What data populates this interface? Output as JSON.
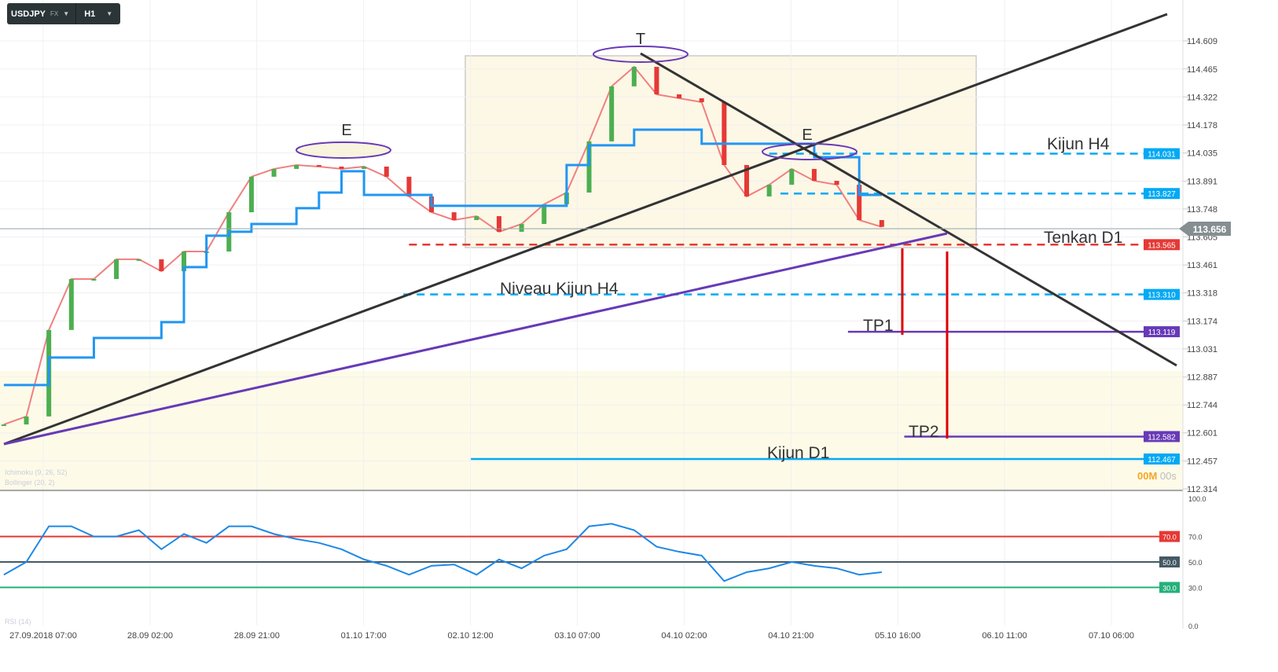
{
  "toolbar": {
    "symbol": "USDJPY",
    "market": "FX",
    "timeframe": "H1"
  },
  "indicators": {
    "ichimoku": "Ichimoku (9, 26, 52)",
    "bollinger": "Bollinger (20, 2)",
    "rsi": "RSI (14)"
  },
  "timer": {
    "minutes": "00M",
    "seconds": "00s"
  },
  "colors": {
    "tenkan": "#f08080",
    "kijun": "#2196f3",
    "chikou": "#37474f",
    "senkou_b": "#f5a64a",
    "rsi": "#1e88e5",
    "rsi_70": "#e53935",
    "rsi_50": "#455a64",
    "rsi_30": "#26b07a",
    "zone": "#fdfbe8"
  },
  "chart_data": {
    "type": "line",
    "symbol": "USDJPY",
    "timeframe": "H1",
    "x_ticks": [
      "27.09.2018  07:00",
      "28.09  02:00",
      "28.09  21:00",
      "01.10  17:00",
      "02.10  12:00",
      "03.10  07:00",
      "04.10  02:00",
      "04.10  21:00",
      "05.10  16:00",
      "06.10  11:00",
      "07.10  06:00"
    ],
    "y_ticks": [
      "114.609",
      "114.465",
      "114.322",
      "114.178",
      "114.035",
      "113.891",
      "113.748",
      "113.605",
      "113.461",
      "113.318",
      "113.174",
      "113.031",
      "112.887",
      "112.744",
      "112.601",
      "112.457",
      "112.314"
    ],
    "ylim": [
      112.314,
      114.609
    ],
    "grid": true,
    "x": [
      "27.09 00:00",
      "27.09 04:00",
      "27.09 08:00",
      "27.09 12:00",
      "27.09 16:00",
      "27.09 20:00",
      "28.09 00:00",
      "28.09 04:00",
      "28.09 08:00",
      "28.09 12:00",
      "28.09 16:00",
      "28.09 20:00",
      "01.10 01:00",
      "01.10 05:00",
      "01.10 09:00",
      "01.10 13:00",
      "01.10 17:00",
      "01.10 21:00",
      "02.10 01:00",
      "02.10 05:00",
      "02.10 09:00",
      "02.10 13:00",
      "02.10 17:00",
      "02.10 21:00",
      "03.10 01:00",
      "03.10 05:00",
      "03.10 09:00",
      "03.10 13:00",
      "03.10 17:00",
      "03.10 21:00",
      "04.10 01:00",
      "04.10 05:00",
      "04.10 09:00",
      "04.10 13:00",
      "04.10 17:00",
      "04.10 21:00",
      "05.10 01:00",
      "05.10 05:00",
      "05.10 09:00",
      "05.10 13:00"
    ],
    "series": [
      {
        "name": "",
        "role": "price",
        "values": [
          112.644,
          112.685,
          113.128,
          113.389,
          113.389,
          113.49,
          113.49,
          113.429,
          113.53,
          113.53,
          113.731,
          113.913,
          113.953,
          113.973,
          113.965,
          113.953,
          113.965,
          113.913,
          113.812,
          113.731,
          113.691,
          113.711,
          113.631,
          113.671,
          113.772,
          113.832,
          114.094,
          114.376,
          114.476,
          114.335,
          114.315,
          114.295,
          113.973,
          113.812,
          113.872,
          113.953,
          113.892,
          113.872,
          113.691,
          113.656
        ]
      },
      {
        "name": "",
        "role": "kijun",
        "values": [
          112.846,
          112.846,
          112.987,
          112.987,
          113.087,
          113.087,
          113.087,
          113.168,
          113.45,
          113.611,
          113.631,
          113.671,
          113.671,
          113.752,
          113.832,
          113.941,
          113.82,
          113.82,
          113.82,
          113.764,
          113.764,
          113.764,
          113.764,
          113.764,
          113.764,
          113.973,
          114.074,
          114.074,
          114.154,
          114.154,
          114.154,
          114.082,
          114.082,
          114.082,
          114.082,
          114.082,
          114.013,
          114.013,
          113.82,
          113.82
        ]
      }
    ],
    "current_price": "113.656",
    "levels": [
      {
        "label": "Kijun H4",
        "price": "114.031",
        "color": "#03a9f4",
        "style": "dashed",
        "from": "04.10 17:00"
      },
      {
        "label": "",
        "price": "113.827",
        "color": "#03a9f4",
        "style": "dashed",
        "from": "04.10 19:00"
      },
      {
        "label": "Tenkan D1",
        "price": "113.565",
        "color": "#e53935",
        "style": "dashed",
        "from": "02.10 01:00"
      },
      {
        "label": "Niveau Kijun H4",
        "price": "113.310",
        "color": "#03a9f4",
        "style": "dashed",
        "from": "02.10 00:00"
      },
      {
        "label": "TP1",
        "price": "113.119",
        "color": "#673ab7",
        "style": "solid",
        "from": "05.10 07:00"
      },
      {
        "label": "TP2",
        "price": "112.582",
        "color": "#673ab7",
        "style": "solid",
        "from": "05.10 17:00"
      },
      {
        "label": "Kijun D1",
        "price": "112.467",
        "color": "#03a9f4",
        "style": "solid",
        "from": "02.10 12:00"
      }
    ],
    "annotations": [
      "E",
      "T",
      "E"
    ],
    "rsi": {
      "ticks": [
        "100.0",
        "70.0",
        "50.0",
        "30.0",
        "0.0"
      ],
      "levels": [
        "70.0",
        "50.0",
        "30.0"
      ],
      "ylim": [
        0,
        100
      ],
      "values": [
        40,
        50,
        78,
        78,
        70,
        70,
        75,
        60,
        72,
        65,
        78,
        78,
        72,
        68,
        65,
        60,
        52,
        47,
        40,
        47,
        48,
        40,
        52,
        45,
        55,
        60,
        78,
        80,
        75,
        62,
        58,
        55,
        35,
        42,
        45,
        50,
        47,
        45,
        40,
        42
      ]
    }
  }
}
